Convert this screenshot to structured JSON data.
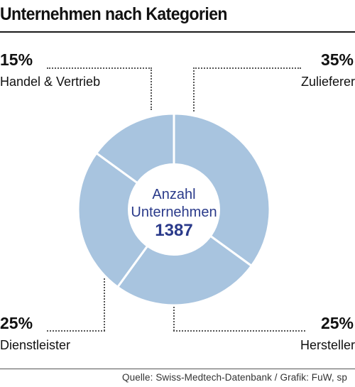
{
  "chart_data": {
    "type": "pie",
    "title": "Unternehmen nach Kategorien",
    "center_label": [
      "Anzahl",
      "Unternehmen"
    ],
    "center_value": "1387",
    "slices": [
      {
        "label": "Zulieferer",
        "value": 35,
        "pct_text": "35%"
      },
      {
        "label": "Hersteller",
        "value": 25,
        "pct_text": "25%"
      },
      {
        "label": "Dienstleister",
        "value": 25,
        "pct_text": "25%"
      },
      {
        "label": "Handel & Vertrieb",
        "value": 15,
        "pct_text": "15%"
      }
    ],
    "colors": {
      "slice": "#a8c4df",
      "separator": "#ffffff",
      "center_label": "#2a3a8a"
    }
  },
  "source": "Quelle:  Swiss-Medtech-Datenbank / Grafik: FuW, sp"
}
